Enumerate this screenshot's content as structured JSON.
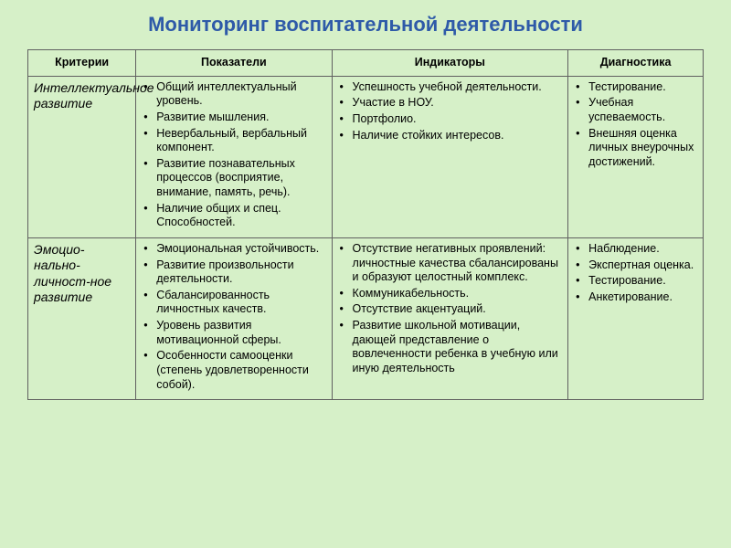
{
  "title": "Мониторинг воспитательной деятельности",
  "columns": [
    "Критерии",
    "Показатели",
    "Индикаторы",
    "Диагностика"
  ],
  "rows": [
    {
      "criteria": "Интеллектуальное развитие",
      "indicators": [
        "Общий интеллектуальный уровень.",
        "Развитие мышления.",
        "Невербальный, вербальный компонент.",
        "Развитие познавательных процессов (восприятие, внимание, память, речь).",
        "Наличие общих и спец. Способностей."
      ],
      "measures": [
        "Успешность учебной деятельности.",
        "Участие в НОУ.",
        "Портфолио.",
        "Наличие стойких интересов."
      ],
      "diagnostics": [
        "Тестирование.",
        "Учебная успеваемость.",
        "Внешняя оценка личных внеурочных достижений."
      ]
    },
    {
      "criteria": "Эмоцио-нально-личност-ное развитие",
      "indicators": [
        "Эмоциональная устойчивость.",
        "Развитие произвольности деятельности.",
        "Сбалансированность личностных качеств.",
        "Уровень развития мотивационной сферы.",
        "Особенности самооценки (степень удовлетворенности собой)."
      ],
      "measures": [
        "Отсутствие негативных проявлений: личностные качества сбалансированы и образуют целостный комплекс.",
        "Коммуникабельность.",
        "Отсутствие акцентуаций.",
        "Развитие школьной мотивации, дающей представление о вовлеченности ребенка в учебную или иную деятельность"
      ],
      "diagnostics": [
        "Наблюдение.",
        "Экспертная оценка.",
        "Тестирование.",
        "Анкетирование."
      ]
    }
  ],
  "colors": {
    "background": "#d6f0c8",
    "title": "#2e5aa8",
    "border": "#606060",
    "text": "#000000"
  }
}
